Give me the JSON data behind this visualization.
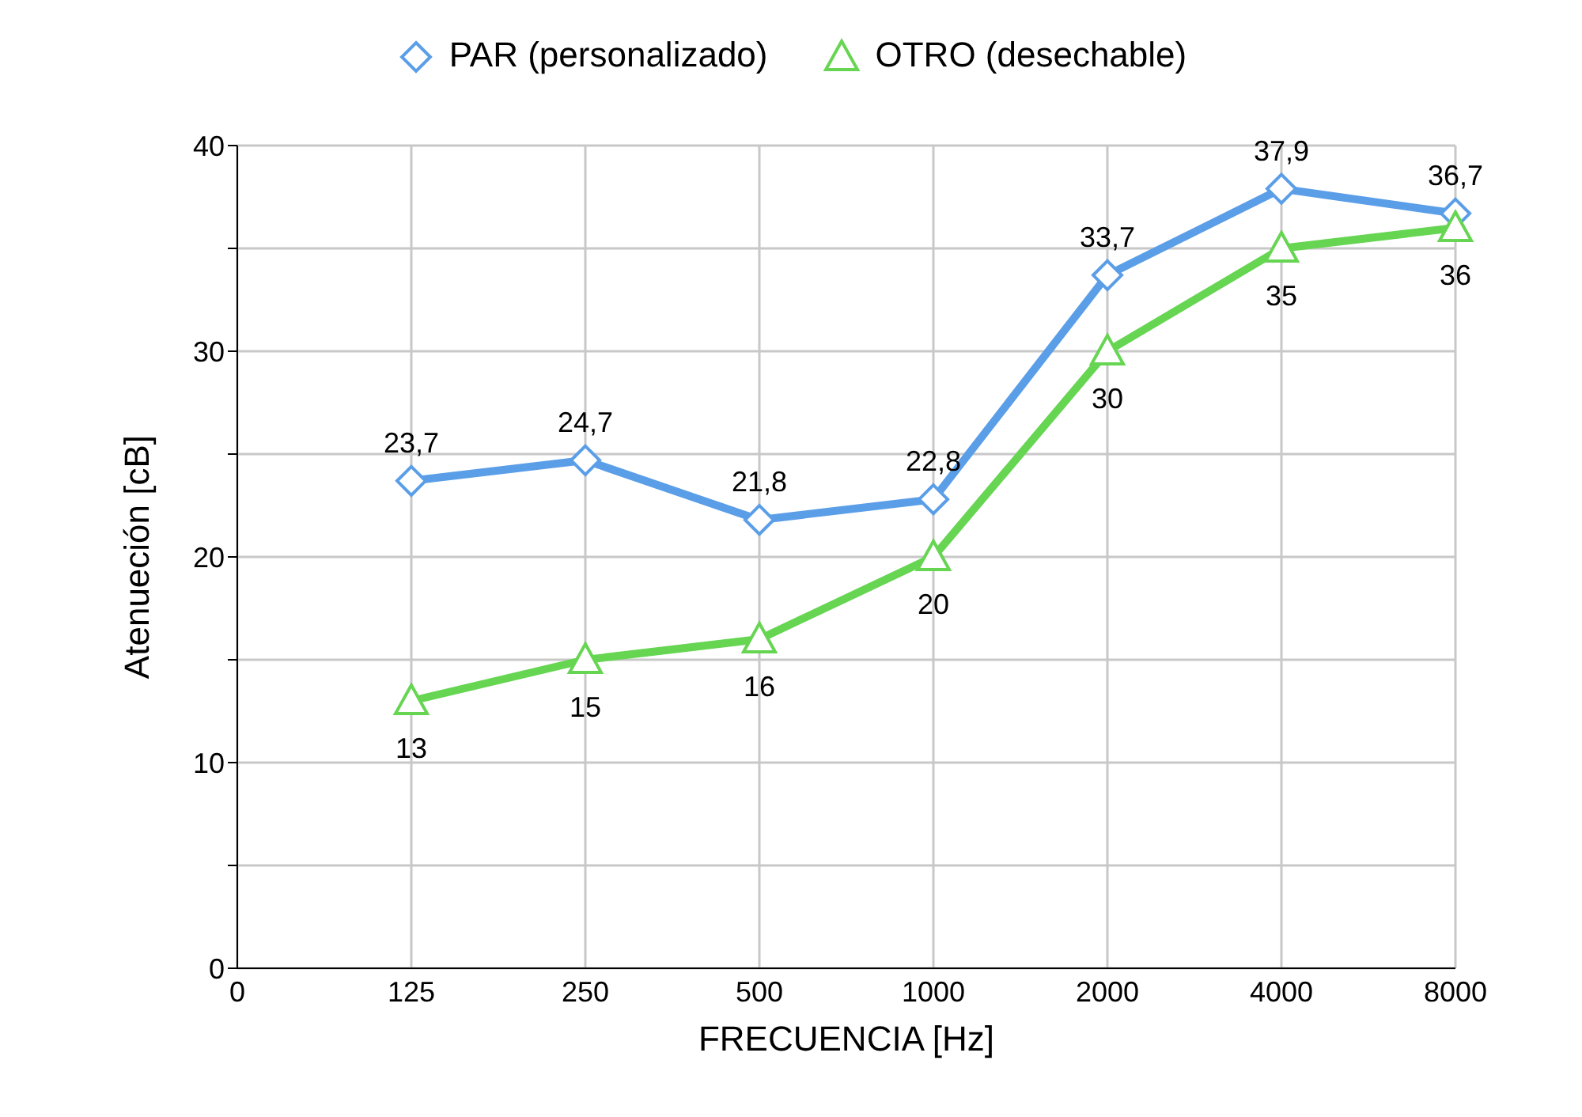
{
  "chart_data": {
    "type": "line",
    "categories": [
      "0",
      "125",
      "250",
      "500",
      "1000",
      "2000",
      "4000",
      "8000"
    ],
    "series": [
      {
        "name": "PAR (personalizado)",
        "color": "#5b9ee8",
        "marker": "diamond",
        "values": [
          null,
          23.7,
          24.7,
          21.8,
          22.8,
          33.7,
          37.9,
          36.7
        ],
        "value_labels": [
          null,
          "23,7",
          "24,7",
          "21,8",
          "22,8",
          "33,7",
          "37,9",
          "36,7"
        ]
      },
      {
        "name": "OTRO (desechable)",
        "color": "#66d552",
        "marker": "triangle",
        "values": [
          null,
          13,
          15,
          16,
          20,
          30,
          35,
          36
        ],
        "value_labels": [
          null,
          "13",
          "15",
          "16",
          "20",
          "30",
          "35",
          "36"
        ]
      }
    ],
    "xlabel": "FRECUENCIA [Hz]",
    "ylabel": "Atenueción [cB]",
    "ylim": [
      0,
      40
    ],
    "yticks": [
      0,
      {
        "value": 5,
        "label": null
      },
      10,
      {
        "value": 15,
        "label": null
      },
      20,
      {
        "value": 25,
        "label": null
      },
      30,
      {
        "value": 35,
        "label": null
      },
      40
    ],
    "grid": true,
    "legend": "top",
    "line_style": "solid"
  }
}
